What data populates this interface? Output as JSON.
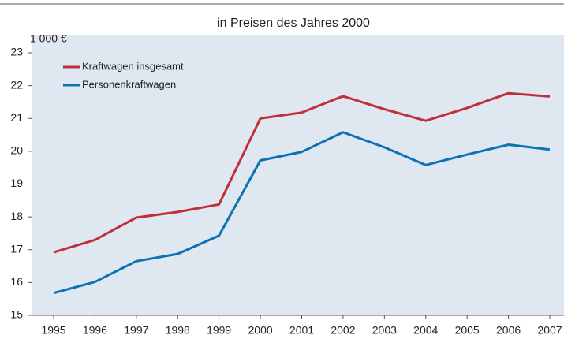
{
  "chart_data": {
    "type": "line",
    "title": "in Preisen des Jahres 2000",
    "y_label": "1 000 €",
    "x": [
      1995,
      1996,
      1997,
      1998,
      1999,
      2000,
      2001,
      2002,
      2003,
      2004,
      2005,
      2006,
      2007
    ],
    "series": [
      {
        "name": "Kraftwagen insgesamt",
        "color": "#c0303a",
        "values": [
          16.92,
          17.3,
          17.98,
          18.15,
          18.38,
          21.0,
          21.18,
          21.68,
          21.28,
          20.93,
          21.32,
          21.77,
          21.67
        ]
      },
      {
        "name": "Personenkraftwagen",
        "color": "#0b72b5",
        "values": [
          15.68,
          16.02,
          16.65,
          16.87,
          17.43,
          19.72,
          19.98,
          20.58,
          20.12,
          19.58,
          19.9,
          20.2,
          20.05
        ]
      }
    ],
    "ylim": [
      15,
      23
    ],
    "yticks": [
      15,
      16,
      17,
      18,
      19,
      20,
      21,
      22,
      23
    ],
    "grid": false,
    "legend": "top-left"
  }
}
